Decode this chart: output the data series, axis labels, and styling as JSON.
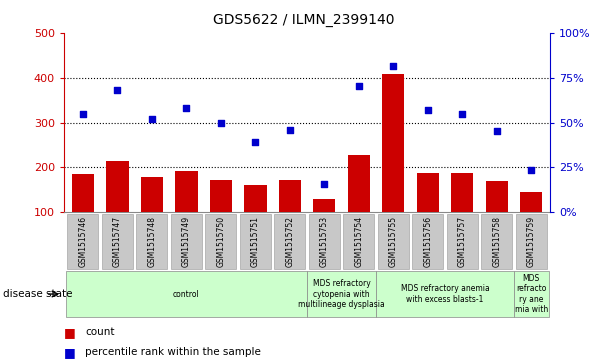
{
  "title": "GDS5622 / ILMN_2399140",
  "samples": [
    "GSM1515746",
    "GSM1515747",
    "GSM1515748",
    "GSM1515749",
    "GSM1515750",
    "GSM1515751",
    "GSM1515752",
    "GSM1515753",
    "GSM1515754",
    "GSM1515755",
    "GSM1515756",
    "GSM1515757",
    "GSM1515758",
    "GSM1515759"
  ],
  "counts": [
    185,
    215,
    178,
    193,
    173,
    160,
    172,
    130,
    228,
    408,
    188,
    188,
    170,
    146
  ],
  "percentile_ranks_left": [
    320,
    372,
    308,
    332,
    299,
    257,
    283,
    163,
    381,
    426,
    328,
    320,
    282,
    195
  ],
  "ylim_left": [
    100,
    500
  ],
  "ylim_right": [
    0,
    100
  ],
  "yticks_left": [
    100,
    200,
    300,
    400,
    500
  ],
  "yticks_right": [
    0,
    25,
    50,
    75,
    100
  ],
  "bar_color": "#CC0000",
  "dot_color": "#0000CC",
  "tick_bg": "#C8C8C8",
  "disease_groups": [
    {
      "label": "control",
      "start": 0,
      "end": 7
    },
    {
      "label": "MDS refractory\ncytopenia with\nmultilineage dysplasia",
      "start": 7,
      "end": 9
    },
    {
      "label": "MDS refractory anemia\nwith excess blasts-1",
      "start": 9,
      "end": 13
    },
    {
      "label": "MDS\nrefracto\nry ane\nmia with",
      "start": 13,
      "end": 14
    }
  ],
  "legend_count_label": "count",
  "legend_pct_label": "percentile rank within the sample",
  "disease_state_label": "disease state"
}
